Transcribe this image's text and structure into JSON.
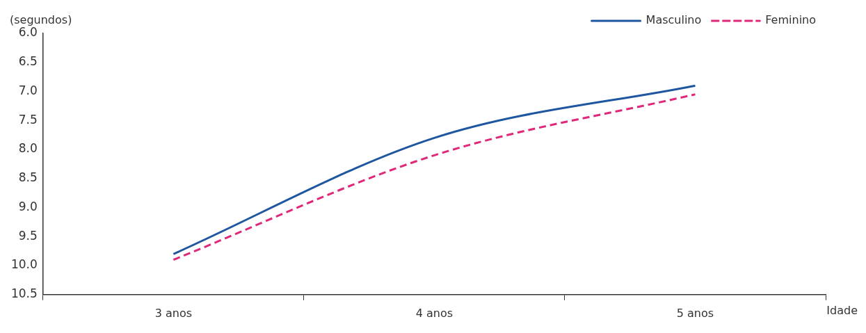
{
  "chart_data": {
    "type": "line",
    "ylabel": "(segundos)",
    "xlabel": "Idade",
    "categories": [
      "3 anos",
      "4 anos",
      "5 anos"
    ],
    "ylim": [
      10.5,
      6.0
    ],
    "yticks": [
      {
        "value": 6,
        "label": "6.0"
      },
      6.5,
      {
        "value": 7,
        "label": "7.0"
      },
      7.5,
      {
        "value": 8,
        "label": "8.0"
      },
      8.5,
      {
        "value": 9,
        "label": "9.0"
      },
      9.5,
      {
        "value": 10,
        "label": "10.0"
      },
      10.5
    ],
    "series": [
      {
        "name": "Masculino",
        "color": "#1f56a0",
        "values": [
          9.8,
          7.8,
          6.9
        ],
        "line_style": "solid"
      },
      {
        "name": "Feminino",
        "color": "#e0287a",
        "values": [
          9.9,
          8.1,
          7.05
        ],
        "line_style": "dashed"
      }
    ],
    "grid": false,
    "legend": "top right",
    "marker": "none"
  }
}
